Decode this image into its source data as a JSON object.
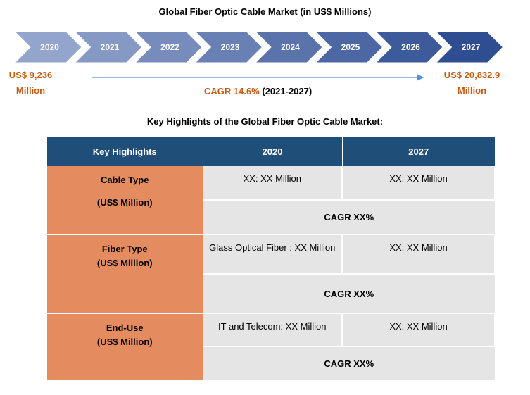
{
  "title": "Global Fiber Optic Cable Market (in US$ Millions)",
  "chart_data": {
    "type": "table",
    "title": "Global Fiber Optic Cable Market (in US$ Millions)",
    "timeline_years": [
      "2020",
      "2021",
      "2022",
      "2023",
      "2024",
      "2025",
      "2026",
      "2027"
    ],
    "start": {
      "value_line": "US$ 9,236",
      "unit_line": "Million",
      "year": "2020",
      "value": 9236
    },
    "end": {
      "value_line": "US$ 20,832.9",
      "unit_line": "Million",
      "year": "2027",
      "value": 20832.9
    },
    "cagr": {
      "value_text": "CAGR 14.6%",
      "range_text": "(2021-2027)",
      "value": 14.6
    },
    "colors": {
      "arrow_light": "#c9d4ec",
      "arrow_dark": "#2f4e92",
      "accent": "#c55a11",
      "header": "#1f4e79",
      "category": "#e48c5f",
      "cell": "#e5e5e5"
    }
  },
  "highlights": {
    "subtitle": "Key Highlights of the Global Fiber Optic Cable Market:",
    "headers": [
      "Key Highlights",
      "2020",
      "2027"
    ],
    "rows": [
      {
        "category": "Cable Type",
        "unit": "(US$ Million)",
        "v2020": "XX: XX Million",
        "v2027": "XX: XX Million",
        "cagr": "CAGR XX%"
      },
      {
        "category": "Fiber Type",
        "unit": "(US$ Million)",
        "v2020": "Glass Optical Fiber : XX Million",
        "v2027": "XX: XX Million",
        "cagr": "CAGR XX%"
      },
      {
        "category": "End-Use",
        "unit": "(US$ Million)",
        "v2020": "IT and Telecom: XX Million",
        "v2027": "XX: XX Million",
        "cagr": "CAGR XX%"
      }
    ]
  }
}
